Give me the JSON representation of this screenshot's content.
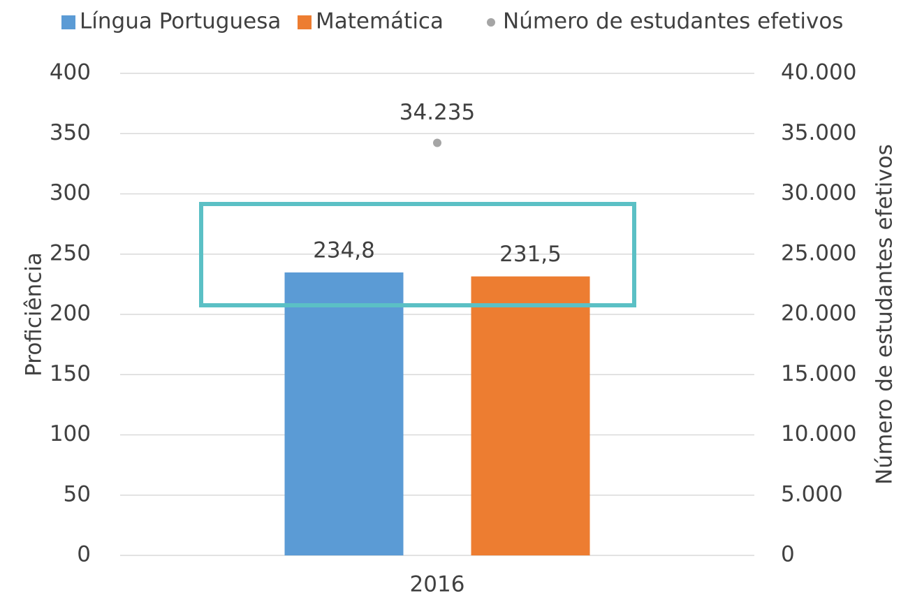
{
  "chart_data": {
    "type": "bar",
    "categories": [
      "2016"
    ],
    "series": [
      {
        "name": "Língua Portuguesa",
        "color": "#5b9bd5",
        "values": [
          234.8
        ],
        "value_labels": [
          "234,8"
        ]
      },
      {
        "name": "Matemática",
        "color": "#ed7d31",
        "values": [
          231.5
        ],
        "value_labels": [
          "231,5"
        ]
      },
      {
        "name": "Número de estudantes efetivos",
        "color": "#a5a5a5",
        "type": "scatter",
        "axis": "y2",
        "values": [
          34235
        ],
        "value_labels": [
          "34.235"
        ]
      }
    ],
    "ylabel": "Proficiência",
    "y2label": "Número de estudantes efetivos",
    "ylim": [
      0,
      400
    ],
    "yticks": [
      0,
      50,
      100,
      150,
      200,
      250,
      300,
      350,
      400
    ],
    "y2lim": [
      0,
      40000
    ],
    "y2ticks": [
      0,
      {
        "value": 5000,
        "label": "5.000"
      },
      {
        "value": 10000,
        "label": "10.000"
      },
      {
        "value": 15000,
        "label": "15.000"
      },
      {
        "value": 20000,
        "label": "20.000"
      },
      {
        "value": 25000,
        "label": "25.000"
      },
      {
        "value": 30000,
        "label": "30.000"
      },
      {
        "value": 35000,
        "label": "35.000"
      },
      {
        "value": 40000,
        "label": "40.000"
      }
    ],
    "grid": true,
    "legend": "top"
  }
}
